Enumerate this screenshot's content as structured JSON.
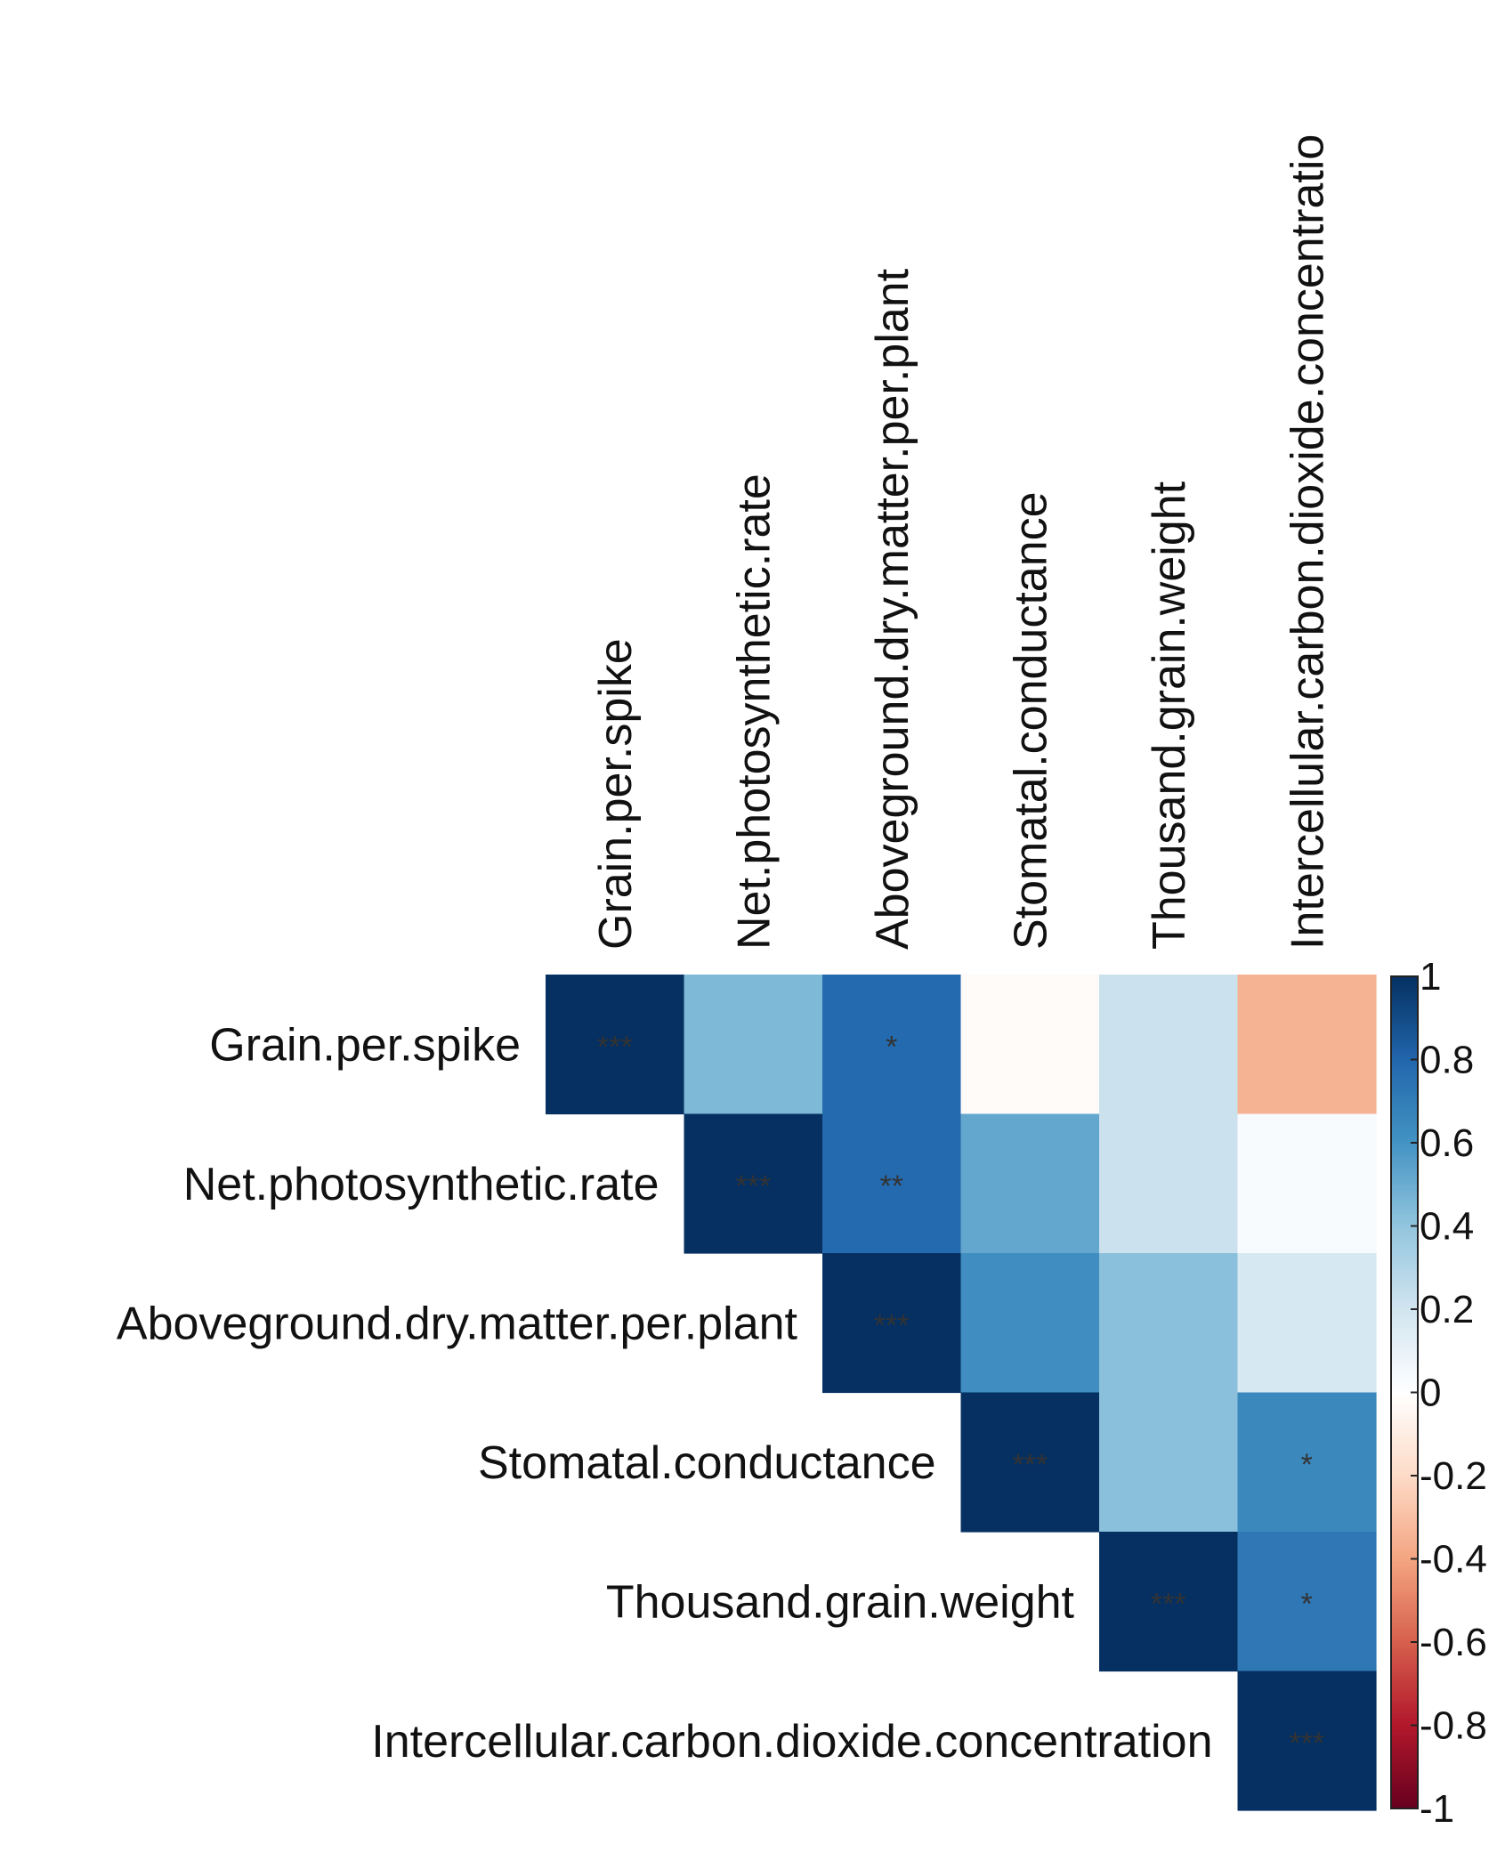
{
  "chart_data": {
    "type": "heatmap",
    "layout": "upper-triangle correlation matrix",
    "variables": [
      "Grain.per.spike",
      "Net.photosynthetic.rate",
      "Aboveground.dry.matter.per.plant",
      "Stomatal.conductance",
      "Thousand.grain.weight",
      "Intercellular.carbon.dioxide.concentration"
    ],
    "column_labels": [
      "Grain.per.spike",
      "Net.photosynthetic.rate",
      "Aboveground.dry.matter.per.plant",
      "Stomatal.conductance",
      "Thousand.grain.weight",
      "Intercellular.carbon.dioxide.concentratio"
    ],
    "matrix": [
      [
        1.0,
        0.45,
        0.78,
        -0.02,
        0.22,
        -0.35
      ],
      [
        null,
        1.0,
        0.78,
        0.52,
        0.22,
        0.03
      ],
      [
        null,
        null,
        1.0,
        0.62,
        0.42,
        0.18
      ],
      [
        null,
        null,
        null,
        1.0,
        0.42,
        0.65
      ],
      [
        null,
        null,
        null,
        null,
        1.0,
        0.72
      ],
      [
        null,
        null,
        null,
        null,
        null,
        1.0
      ]
    ],
    "significance": [
      [
        "***",
        "",
        "*",
        "",
        "",
        ""
      ],
      [
        "",
        "***",
        "**",
        "",
        "",
        ""
      ],
      [
        "",
        "",
        "***",
        "",
        "",
        ""
      ],
      [
        "",
        "",
        "",
        "***",
        "",
        "*"
      ],
      [
        "",
        "",
        "",
        "",
        "***",
        "*"
      ],
      [
        "",
        "",
        "",
        "",
        "",
        "***"
      ]
    ],
    "colorbar": {
      "range": [
        -1,
        1
      ],
      "ticks": [
        "1",
        "0.8",
        "0.6",
        "0.4",
        "0.2",
        "0",
        "-0.2",
        "-0.4",
        "-0.6",
        "-0.8",
        "-1"
      ],
      "palette": [
        "#67001F",
        "#B2182B",
        "#D6604D",
        "#F4A582",
        "#FDDBC7",
        "#FFFFFF",
        "#D1E5F0",
        "#92C5DE",
        "#4393C3",
        "#2166AC",
        "#053061"
      ]
    }
  }
}
